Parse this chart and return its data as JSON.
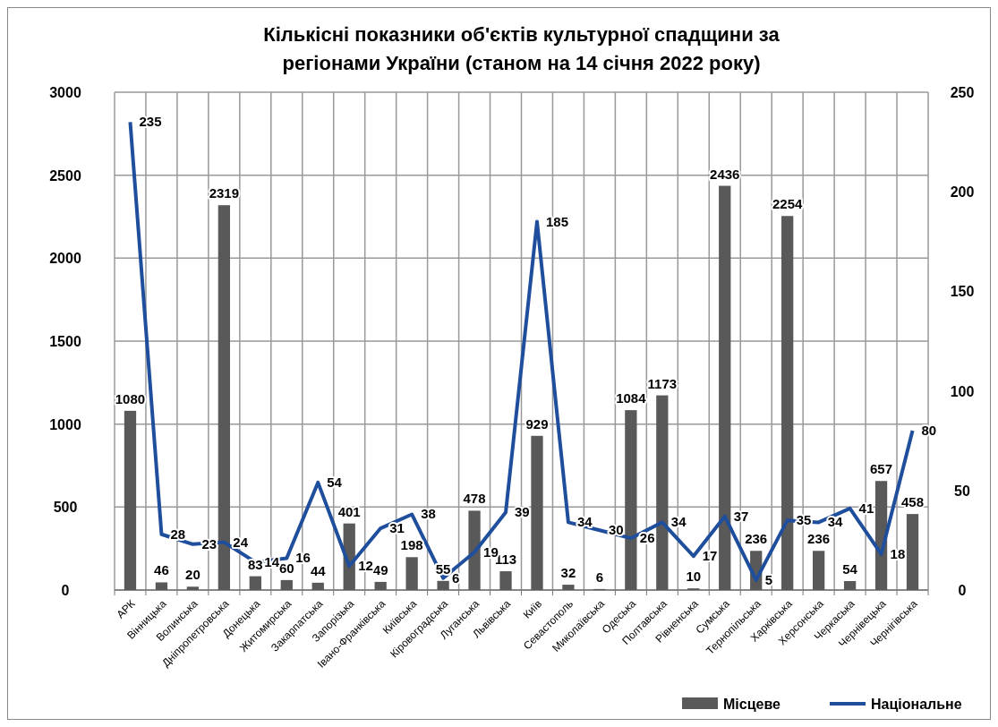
{
  "chart_data": {
    "type": "bar",
    "title": "Кількісні показники об'єктів культурної спадщини за регіонами України (станом на 14 січня 2022 року)",
    "categories": [
      "АРК",
      "Вінницька",
      "Волинська",
      "Дніпропетровська",
      "Донецька",
      "Житомирська",
      "Закарпатська",
      "Запорізька",
      "Івано-Франківська",
      "Київська",
      "Кіровоградська",
      "Луганська",
      "Львівська",
      "Київ",
      "Севастополь",
      "Миколаївська",
      "Одеська",
      "Полтавська",
      "Рівненська",
      "Сумська",
      "Тернопільська",
      "Харківська",
      "Херсонська",
      "Черкаська",
      "Чернівецька",
      "Чернігівська"
    ],
    "series": [
      {
        "name": "Місцеве",
        "color": "#595959",
        "values": [
          1080,
          46,
          20,
          2319,
          83,
          60,
          44,
          401,
          49,
          198,
          55,
          478,
          113,
          929,
          32,
          6,
          1084,
          1173,
          10,
          2436,
          236,
          2254,
          236,
          54,
          657,
          458
        ]
      },
      {
        "name": "Національне",
        "type": "line",
        "axis": "y2",
        "color": "#1f4e9c",
        "values": [
          235,
          28,
          23,
          24,
          14,
          16,
          54,
          12,
          31,
          38,
          6,
          19,
          39,
          185,
          34,
          30,
          26,
          34,
          17,
          37,
          5,
          35,
          34,
          41,
          18,
          80
        ]
      }
    ],
    "ylim": [
      0,
      3000
    ],
    "yticks": [
      0,
      500,
      1000,
      1500,
      2000,
      2500,
      3000
    ],
    "y2lim": [
      0,
      250
    ],
    "y2ticks": [
      0,
      50,
      100,
      150,
      200,
      250
    ],
    "grid": true,
    "legend": "bottom right",
    "data_labels": true,
    "marker": "none"
  }
}
